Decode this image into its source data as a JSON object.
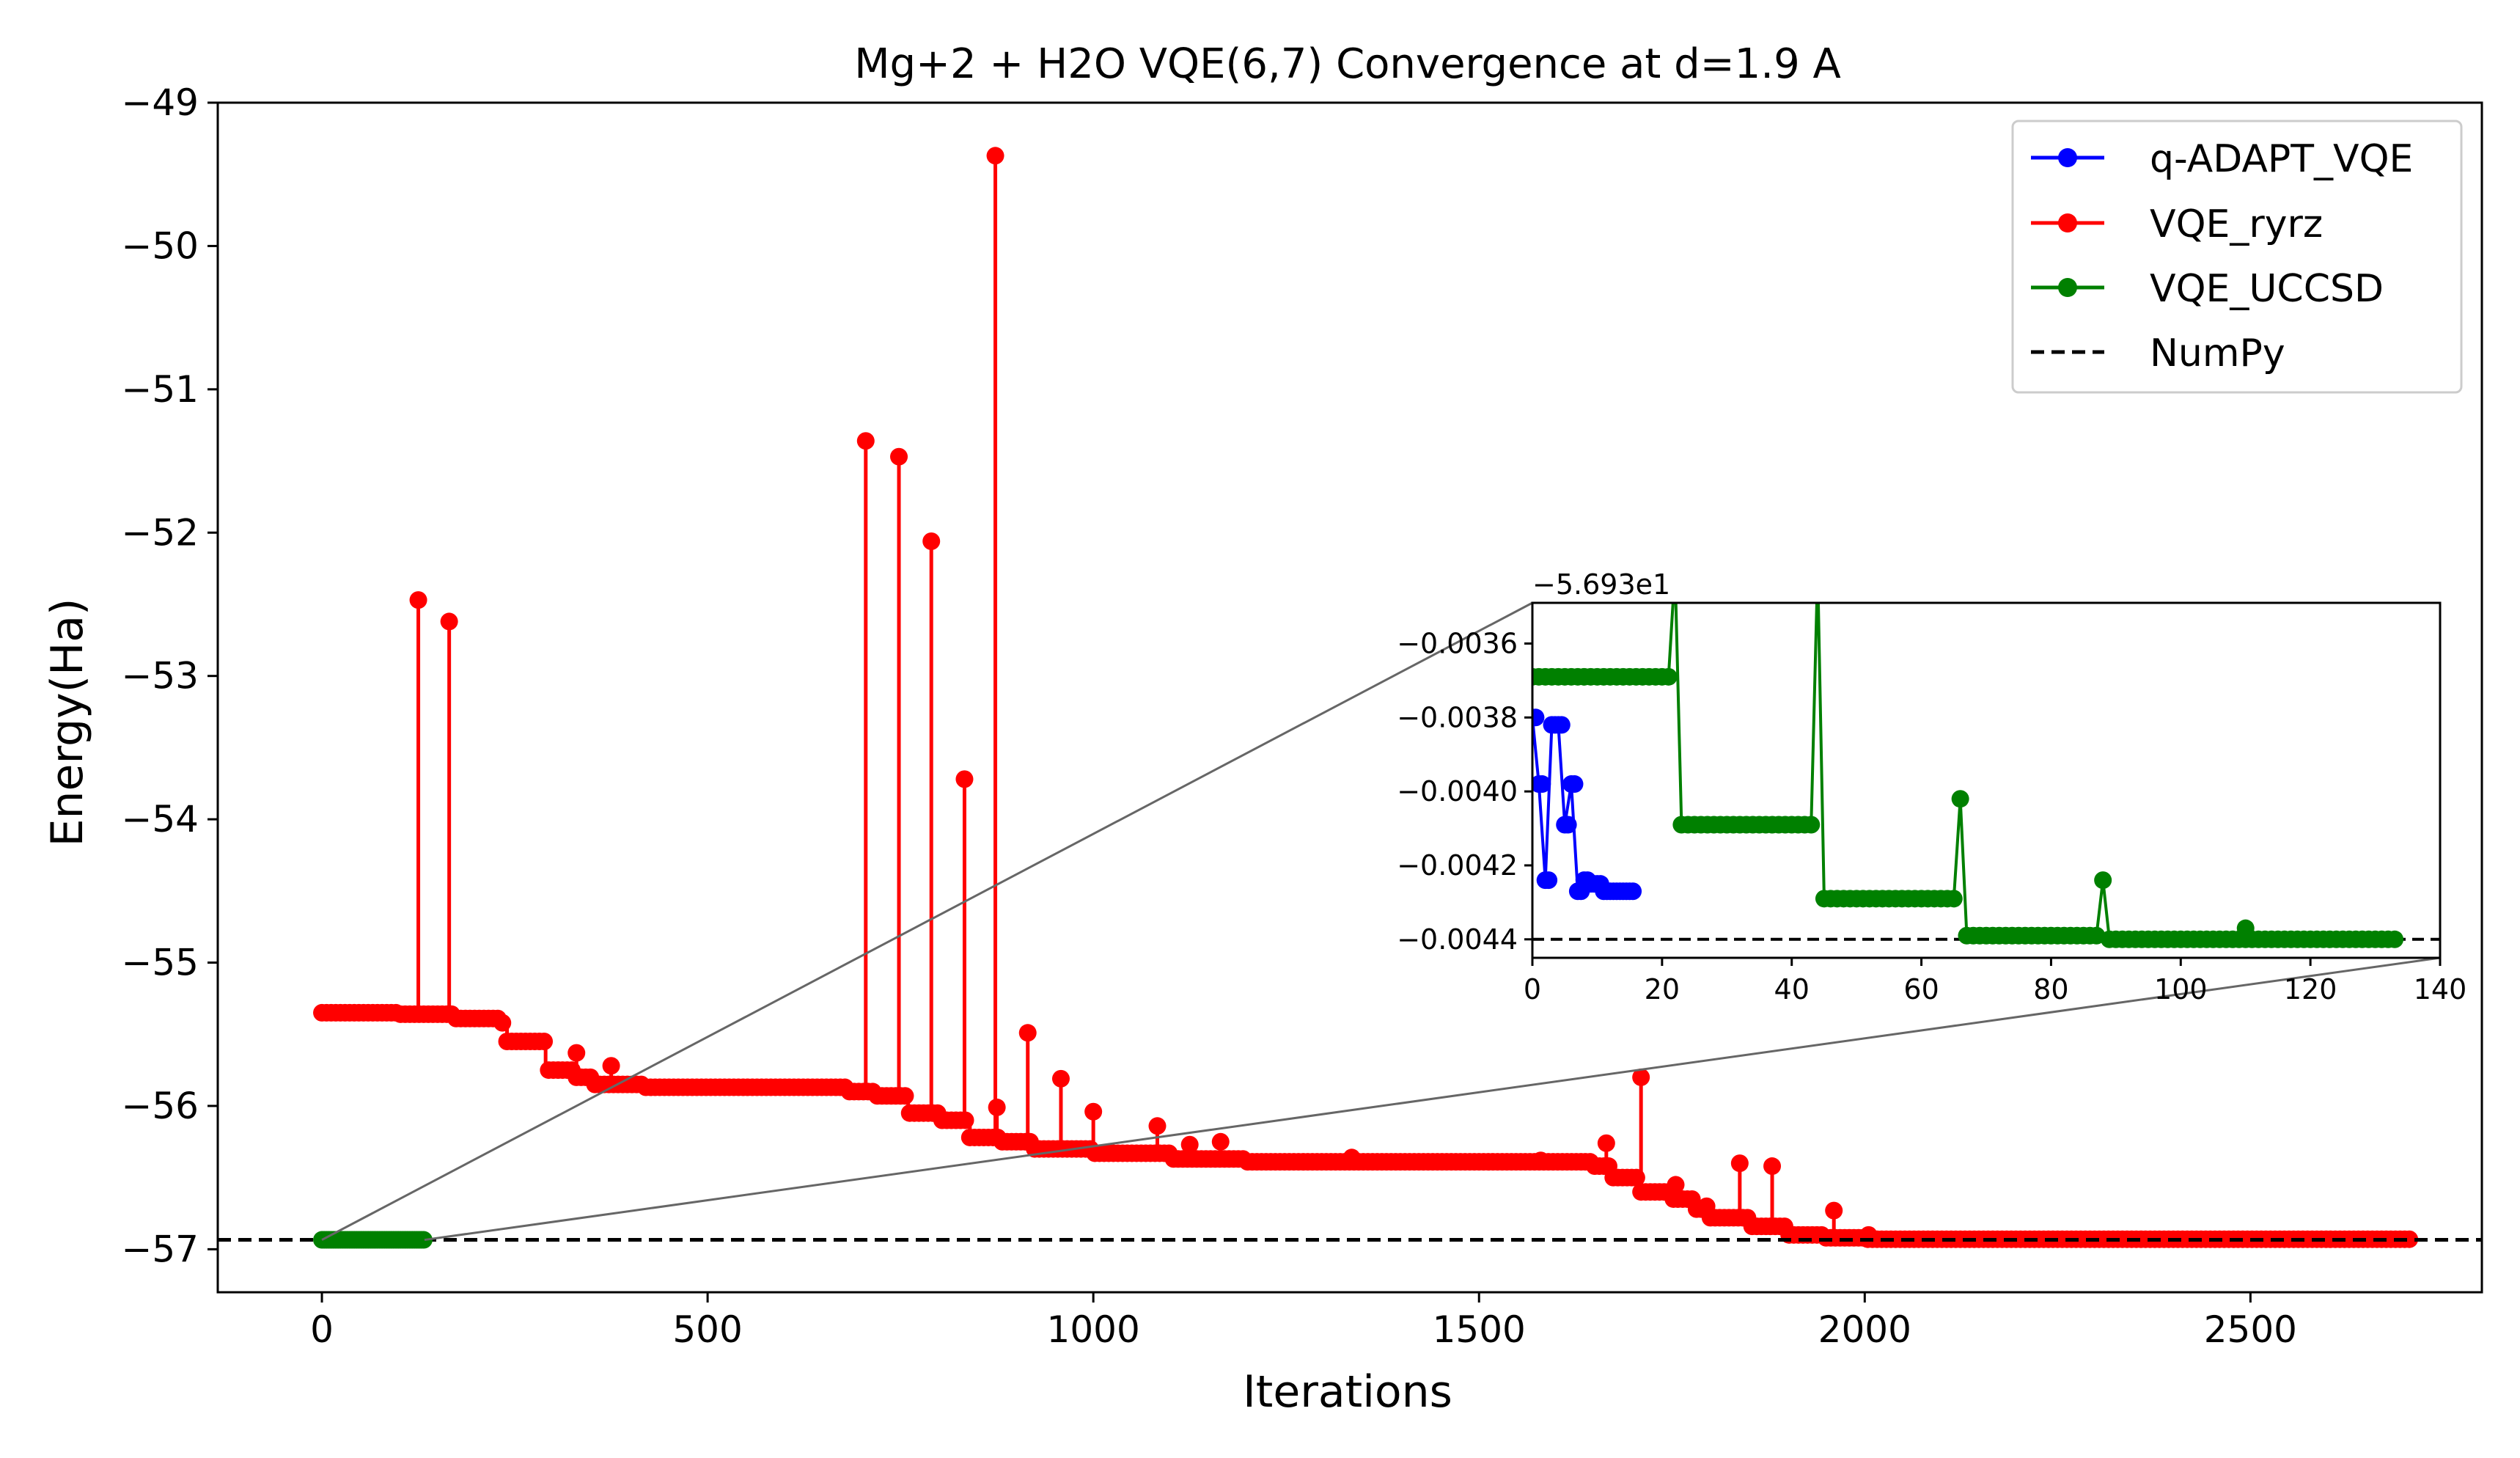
{
  "chart_data": {
    "type": "line",
    "title": "Mg+2 + H2O VQE(6,7) Convergence at d=1.9 A",
    "xlabel": "Iterations",
    "ylabel": "Energy(Ha)",
    "xlim": [
      -135,
      2800
    ],
    "ylim": [
      -57.3,
      -49
    ],
    "xticks": [
      0,
      500,
      1000,
      1500,
      2000,
      2500
    ],
    "yticks": [
      -57,
      -56,
      -55,
      -54,
      -53,
      -52,
      -51,
      -50,
      -49
    ],
    "grid": false,
    "legend_position": "top-right",
    "series": [
      {
        "name": "q-ADAPT_VQE",
        "color": "#0000ff",
        "marker": "circle",
        "x": [
          0,
          1,
          2,
          3,
          4,
          5,
          6,
          7,
          8,
          9,
          10,
          11,
          12,
          13,
          14,
          15
        ],
        "y": [
          -56.9338,
          -56.93398,
          -56.93424,
          -56.93382,
          -56.93382,
          -56.93409,
          -56.93398,
          -56.93427,
          -56.93424,
          -56.93425,
          -56.93425,
          -56.93427,
          -56.93427,
          -56.93427,
          -56.93427,
          -56.93427
        ]
      },
      {
        "name": "VQE_ryrz",
        "color": "#ff0000",
        "marker": "circle",
        "segments": [
          {
            "x": [
              0,
              2710
            ],
            "y": [
              -55.35,
              -56.93
            ]
          }
        ],
        "steps": [
          {
            "x": 0,
            "y": -55.35
          },
          {
            "x": 100,
            "y": -55.36
          },
          {
            "x": 170,
            "y": -55.39
          },
          {
            "x": 230,
            "y": -55.42
          },
          {
            "x": 240,
            "y": -55.55
          },
          {
            "x": 290,
            "y": -55.75
          },
          {
            "x": 330,
            "y": -55.8
          },
          {
            "x": 350,
            "y": -55.85
          },
          {
            "x": 420,
            "y": -55.87
          },
          {
            "x": 680,
            "y": -55.9
          },
          {
            "x": 720,
            "y": -55.93
          },
          {
            "x": 760,
            "y": -56.05
          },
          {
            "x": 800,
            "y": -56.1
          },
          {
            "x": 840,
            "y": -56.22
          },
          {
            "x": 880,
            "y": -56.25
          },
          {
            "x": 920,
            "y": -56.3
          },
          {
            "x": 1000,
            "y": -56.33
          },
          {
            "x": 1100,
            "y": -56.37
          },
          {
            "x": 1200,
            "y": -56.39
          },
          {
            "x": 1650,
            "y": -56.42
          },
          {
            "x": 1670,
            "y": -56.5
          },
          {
            "x": 1710,
            "y": -56.6
          },
          {
            "x": 1750,
            "y": -56.65
          },
          {
            "x": 1780,
            "y": -56.72
          },
          {
            "x": 1800,
            "y": -56.78
          },
          {
            "x": 1850,
            "y": -56.84
          },
          {
            "x": 1900,
            "y": -56.9
          },
          {
            "x": 1950,
            "y": -56.92
          },
          {
            "x": 2000,
            "y": -56.93
          },
          {
            "x": 2710,
            "y": -56.93
          }
        ],
        "spikes": [
          {
            "x": 125,
            "y": -52.47
          },
          {
            "x": 165,
            "y": -52.62
          },
          {
            "x": 330,
            "y": -55.63
          },
          {
            "x": 375,
            "y": -55.72
          },
          {
            "x": 705,
            "y": -51.36
          },
          {
            "x": 748,
            "y": -51.47
          },
          {
            "x": 790,
            "y": -52.06
          },
          {
            "x": 833,
            "y": -53.72
          },
          {
            "x": 873,
            "y": -49.37
          },
          {
            "x": 875,
            "y": -56.01
          },
          {
            "x": 915,
            "y": -55.49
          },
          {
            "x": 958,
            "y": -55.81
          },
          {
            "x": 1000,
            "y": -56.04
          },
          {
            "x": 1083,
            "y": -56.14
          },
          {
            "x": 1125,
            "y": -56.27
          },
          {
            "x": 1165,
            "y": -56.25
          },
          {
            "x": 1335,
            "y": -56.36
          },
          {
            "x": 1580,
            "y": -56.38
          },
          {
            "x": 1665,
            "y": -56.26
          },
          {
            "x": 1710,
            "y": -55.8
          },
          {
            "x": 1755,
            "y": -56.55
          },
          {
            "x": 1795,
            "y": -56.7
          },
          {
            "x": 1838,
            "y": -56.4
          },
          {
            "x": 1880,
            "y": -56.42
          },
          {
            "x": 1960,
            "y": -56.73
          },
          {
            "x": 2005,
            "y": -56.9
          }
        ]
      },
      {
        "name": "VQE_UCCSD",
        "color": "#008000",
        "marker": "circle",
        "levels": [
          {
            "x0": 0,
            "x1": 21,
            "y": -56.93369
          },
          {
            "x0": 23,
            "x1": 43,
            "y": -56.93409
          },
          {
            "x0": 45,
            "x1": 65,
            "y": -56.93429
          },
          {
            "x0": 67,
            "x1": 87,
            "y": -56.93439
          },
          {
            "x0": 89,
            "x1": 133,
            "y": -56.9344
          }
        ],
        "peaks": [
          {
            "x": 22,
            "y": -56.9334
          },
          {
            "x": 44,
            "y": -56.9334
          },
          {
            "x": 66,
            "y": -56.93402
          },
          {
            "x": 88,
            "y": -56.93424
          },
          {
            "x": 110,
            "y": -56.93437
          }
        ],
        "x_end": 133
      },
      {
        "name": "NumPy",
        "color": "#000000",
        "style": "dashed",
        "y": -56.9344
      }
    ],
    "inset": {
      "xlim": [
        0,
        140
      ],
      "ylim": [
        -0.00445,
        -0.00349
      ],
      "offset_label": "−5.693e1",
      "xticks": [
        0,
        20,
        40,
        60,
        80,
        100,
        120,
        140
      ],
      "yticks": [
        -0.0036,
        -0.0038,
        -0.004,
        -0.0042,
        -0.0044
      ],
      "ytick_labels": [
        "−0.0036",
        "−0.0038",
        "−0.0040",
        "−0.0042",
        "−0.0044"
      ],
      "offset": -56.93
    }
  }
}
